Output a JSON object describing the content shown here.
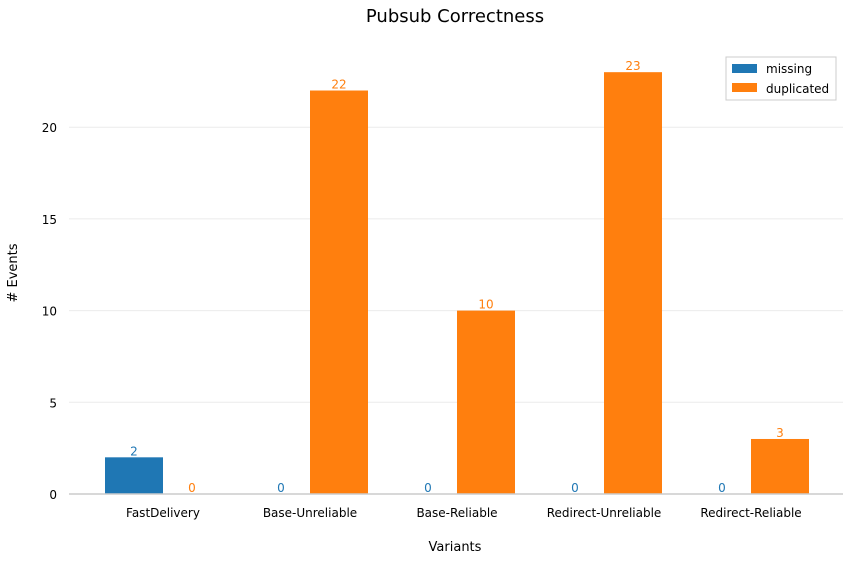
{
  "chart_data": {
    "type": "bar",
    "title": "Pubsub Correctness",
    "xlabel": "Variants",
    "ylabel": "# Events",
    "categories": [
      "FastDelivery",
      "Base-Unreliable",
      "Base-Reliable",
      "Redirect-Unreliable",
      "Redirect-Reliable"
    ],
    "series": [
      {
        "name": "missing",
        "color": "#1f77b4",
        "values": [
          2,
          0,
          0,
          0,
          0
        ]
      },
      {
        "name": "duplicated",
        "color": "#ff7f0e",
        "values": [
          0,
          22,
          10,
          23,
          3
        ]
      }
    ],
    "ylim": [
      0,
      24.1
    ],
    "yticks": [
      0,
      5,
      10,
      15,
      20
    ],
    "grid": true,
    "legend": "top-right"
  }
}
